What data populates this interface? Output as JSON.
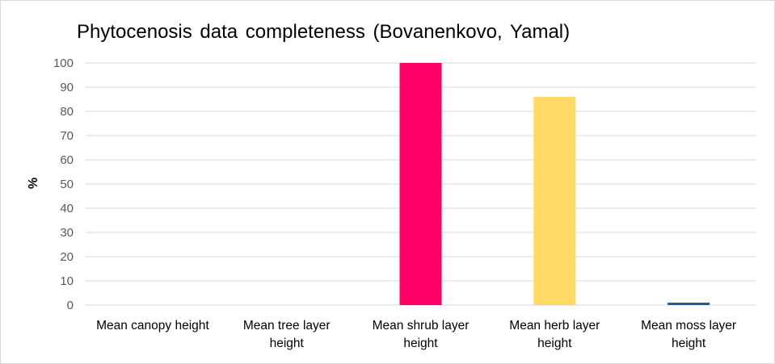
{
  "chart_data": {
    "type": "bar",
    "title": "Phytocenosis  data completeness (Bovanenkovo, Yamal)",
    "xlabel": "",
    "ylabel": "%",
    "ylim": [
      0,
      100
    ],
    "yticks": [
      0,
      10,
      20,
      30,
      40,
      50,
      60,
      70,
      80,
      90,
      100
    ],
    "grid": true,
    "legend": "none",
    "categories": [
      [
        "Mean canopy height"
      ],
      [
        "Mean tree layer",
        "height"
      ],
      [
        "Mean shrub layer",
        "height"
      ],
      [
        "Mean herb layer",
        "height"
      ],
      [
        "Mean moss layer",
        "height"
      ]
    ],
    "values": [
      0,
      0,
      100,
      86,
      1
    ],
    "colors": [
      "#4472c4",
      "#4472c4",
      "#ff0066",
      "#ffd966",
      "#2f5597"
    ]
  }
}
